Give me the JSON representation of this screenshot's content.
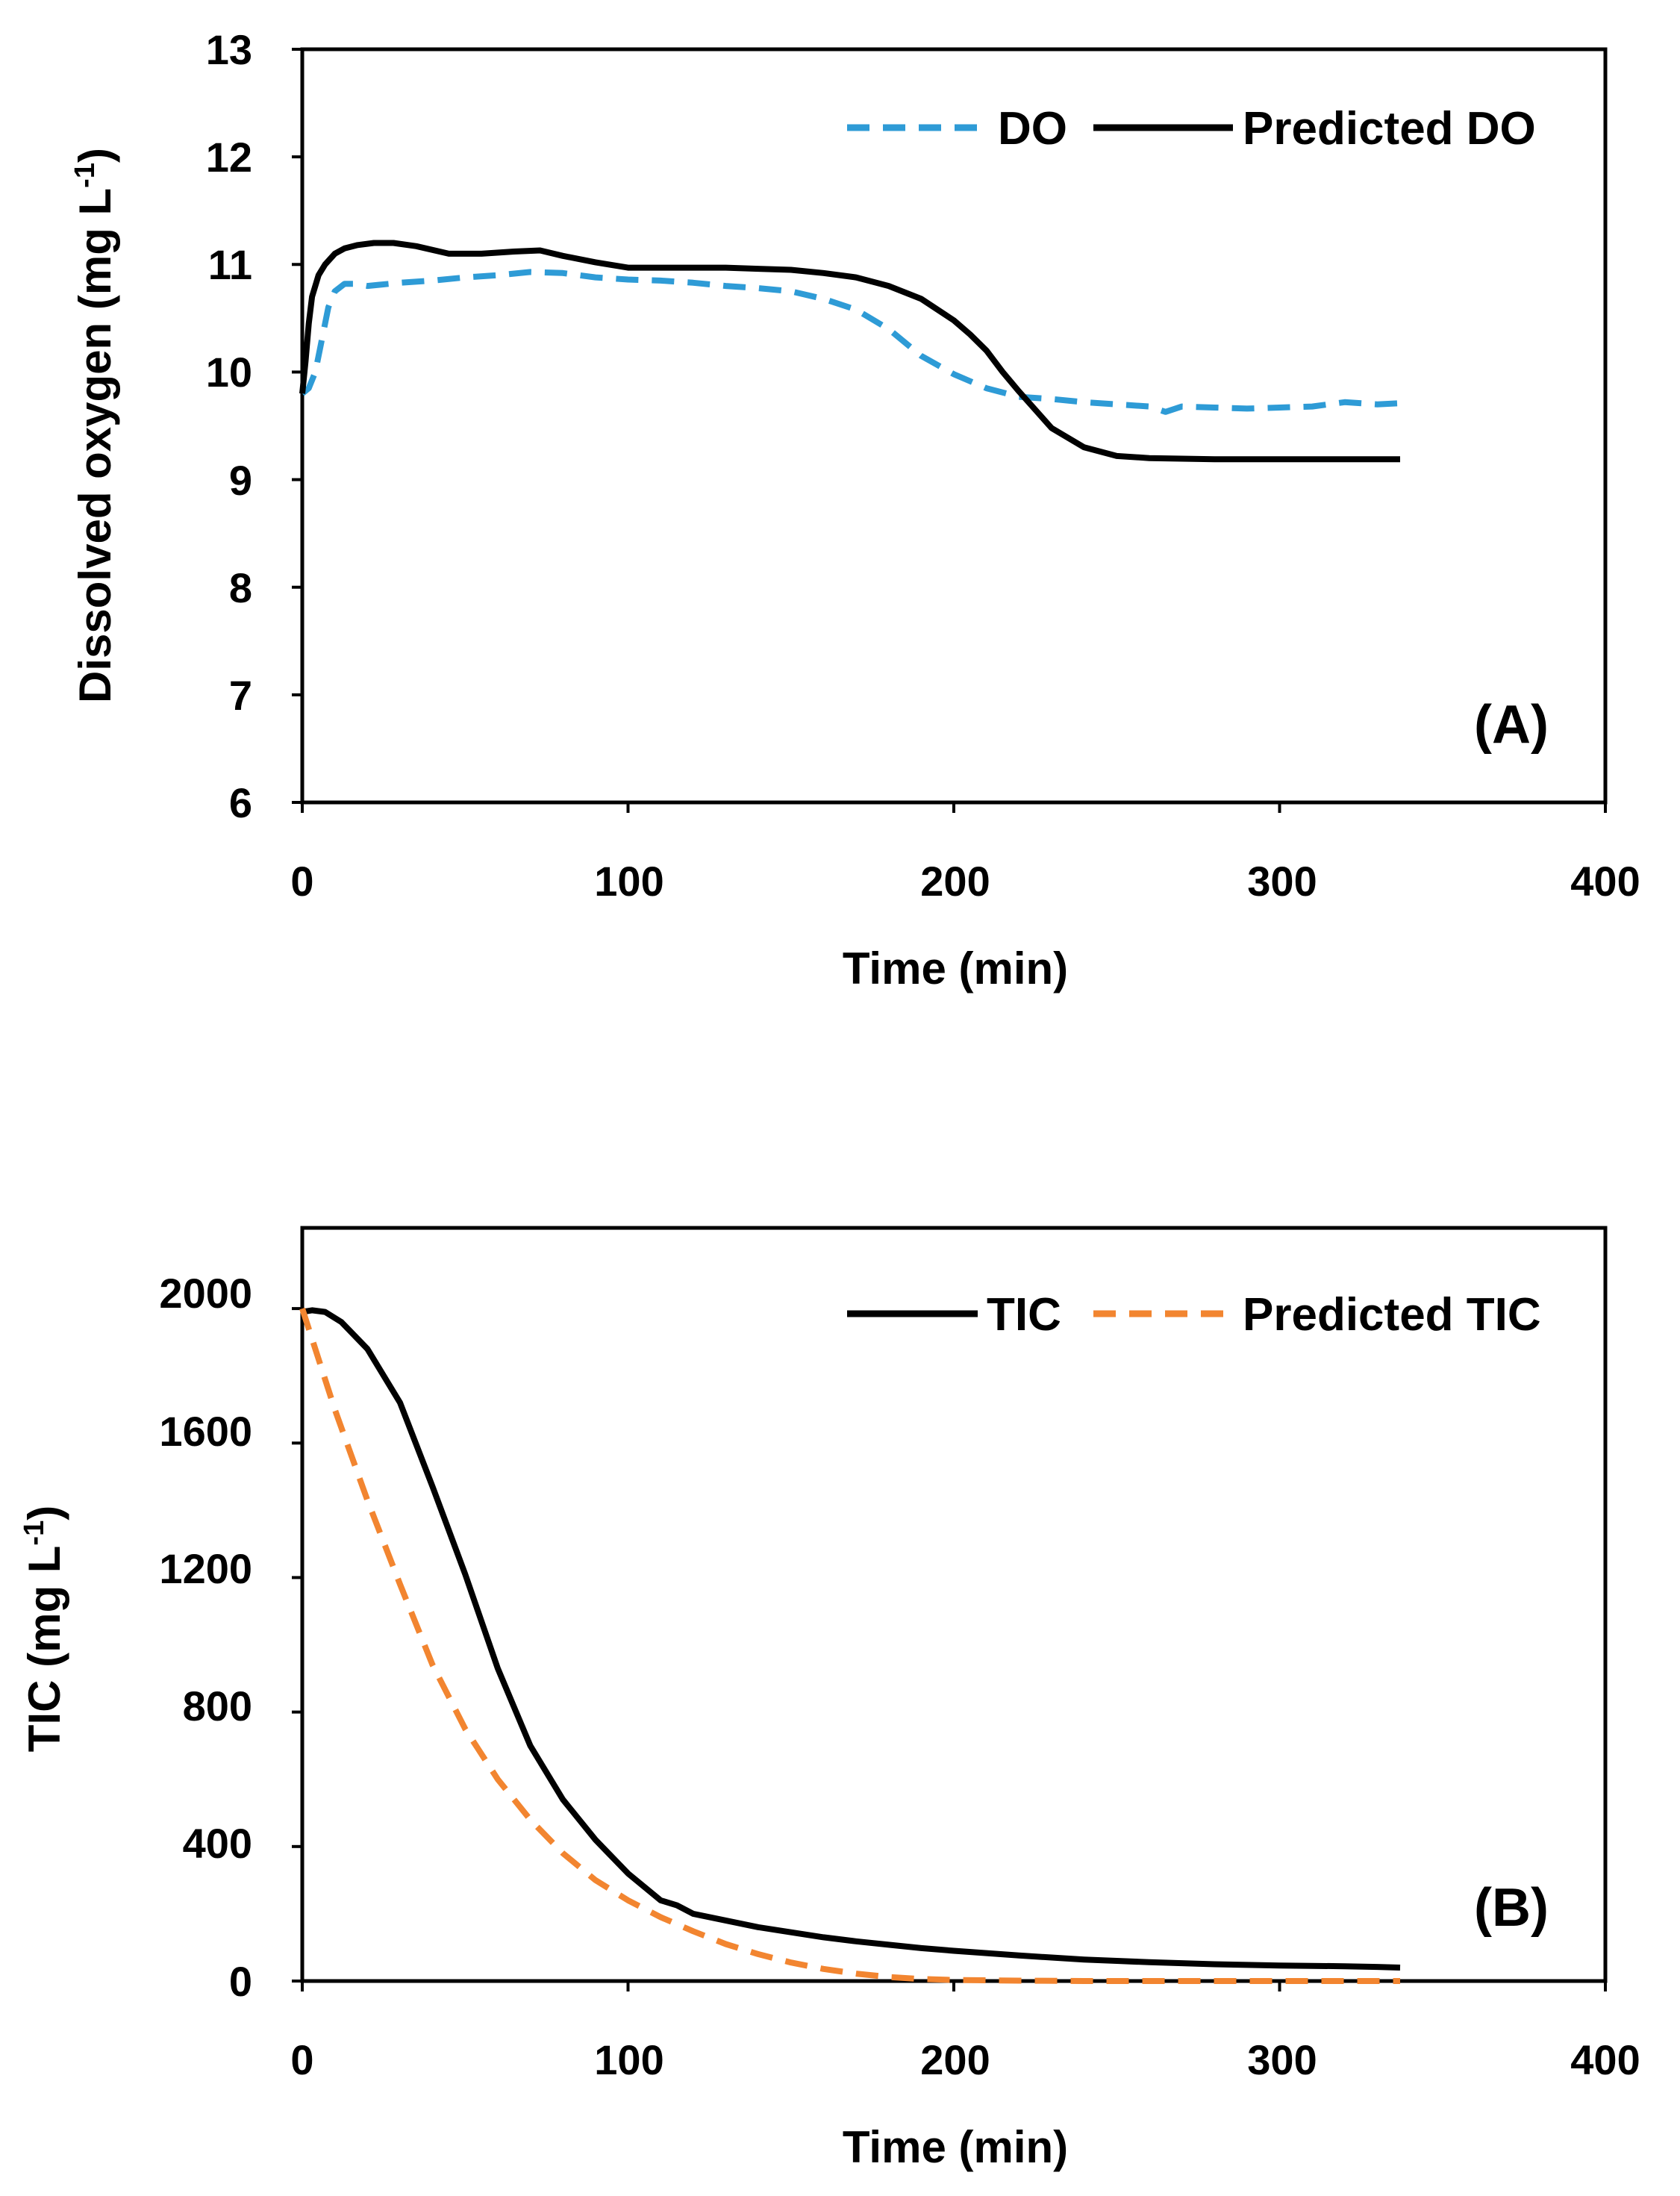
{
  "chart_data": [
    {
      "id": "A",
      "type": "line",
      "panel_label": "(A)",
      "xlabel": "Time (min)",
      "ylabel": "Dissolved oxygen (mg L",
      "ylabel_sup": "-1",
      "ylabel_close": ")",
      "xlim": [
        0,
        400
      ],
      "ylim": [
        6,
        13
      ],
      "xticks": [
        "0",
        "100",
        "200",
        "300",
        "400"
      ],
      "yticks": [
        "6",
        "7",
        "8",
        "9",
        "10",
        "11",
        "12",
        "13"
      ],
      "grid": false,
      "legend_position": "top-right",
      "series": [
        {
          "name": "DO",
          "color": "#2e9bd6",
          "style": "dashed",
          "x": [
            0,
            2,
            4,
            6,
            8,
            10,
            13,
            16,
            20,
            30,
            40,
            50,
            60,
            70,
            80,
            90,
            100,
            110,
            120,
            130,
            140,
            150,
            160,
            170,
            180,
            190,
            200,
            210,
            220,
            230,
            240,
            250,
            260,
            265,
            270,
            280,
            290,
            300,
            310,
            320,
            330,
            337
          ],
          "y": [
            9.8,
            9.85,
            10.0,
            10.3,
            10.6,
            10.75,
            10.82,
            10.82,
            10.8,
            10.83,
            10.85,
            10.88,
            10.9,
            10.93,
            10.92,
            10.88,
            10.86,
            10.85,
            10.83,
            10.8,
            10.78,
            10.75,
            10.68,
            10.58,
            10.4,
            10.15,
            9.98,
            9.85,
            9.77,
            9.75,
            9.72,
            9.7,
            9.68,
            9.63,
            9.68,
            9.67,
            9.66,
            9.67,
            9.68,
            9.72,
            9.7,
            9.71
          ]
        },
        {
          "name": "Predicted DO",
          "color": "#000000",
          "style": "solid",
          "x": [
            0,
            1,
            2,
            3,
            5,
            7,
            10,
            13,
            17,
            22,
            28,
            35,
            45,
            55,
            65,
            73,
            80,
            90,
            100,
            110,
            120,
            130,
            140,
            150,
            160,
            170,
            180,
            190,
            200,
            205,
            210,
            215,
            220,
            225,
            230,
            240,
            250,
            260,
            280,
            300,
            320,
            337
          ],
          "y": [
            9.8,
            10.1,
            10.45,
            10.7,
            10.9,
            11.0,
            11.1,
            11.15,
            11.18,
            11.2,
            11.2,
            11.17,
            11.1,
            11.1,
            11.12,
            11.13,
            11.08,
            11.02,
            10.97,
            10.97,
            10.97,
            10.97,
            10.96,
            10.95,
            10.92,
            10.88,
            10.8,
            10.68,
            10.48,
            10.35,
            10.2,
            10.0,
            9.82,
            9.65,
            9.48,
            9.3,
            9.22,
            9.2,
            9.19,
            9.19,
            9.19,
            9.19
          ]
        }
      ]
    },
    {
      "id": "B",
      "type": "line",
      "panel_label": "(B)",
      "xlabel": "Time (min)",
      "ylabel": "TIC (mg L",
      "ylabel_sup": "-1",
      "ylabel_close": ")",
      "xlim": [
        0,
        400
      ],
      "ylim": [
        0,
        2240
      ],
      "xticks": [
        "0",
        "100",
        "200",
        "300",
        "400"
      ],
      "yticks": [
        "0",
        "400",
        "800",
        "1200",
        "1600",
        "2000"
      ],
      "ytick_values": [
        0,
        400,
        800,
        1200,
        1600,
        2000
      ],
      "grid": false,
      "legend_position": "top-right",
      "series": [
        {
          "name": "TIC",
          "color": "#000000",
          "style": "solid",
          "x": [
            0,
            3,
            7,
            12,
            20,
            30,
            40,
            50,
            60,
            70,
            80,
            90,
            100,
            110,
            115,
            120,
            130,
            140,
            150,
            160,
            170,
            180,
            190,
            200,
            210,
            220,
            230,
            240,
            250,
            260,
            270,
            280,
            290,
            300,
            310,
            320,
            330,
            337
          ],
          "y": [
            1990,
            1995,
            1990,
            1960,
            1880,
            1720,
            1470,
            1210,
            930,
            700,
            540,
            420,
            320,
            240,
            225,
            200,
            180,
            160,
            145,
            130,
            118,
            108,
            98,
            90,
            83,
            76,
            70,
            64,
            60,
            56,
            53,
            50,
            48,
            46,
            45,
            44,
            42,
            40
          ]
        },
        {
          "name": "Predicted TIC",
          "color": "#f28530",
          "style": "dashed",
          "x": [
            0,
            10,
            20,
            30,
            40,
            50,
            60,
            70,
            80,
            90,
            100,
            110,
            120,
            130,
            140,
            150,
            160,
            170,
            180,
            190,
            200,
            220,
            240,
            260,
            280,
            300,
            320,
            337
          ],
          "y": [
            2000,
            1700,
            1430,
            1180,
            940,
            750,
            600,
            480,
            380,
            300,
            240,
            190,
            148,
            110,
            80,
            55,
            36,
            22,
            12,
            6,
            3,
            1,
            0,
            0,
            0,
            0,
            0,
            0
          ]
        }
      ]
    }
  ]
}
